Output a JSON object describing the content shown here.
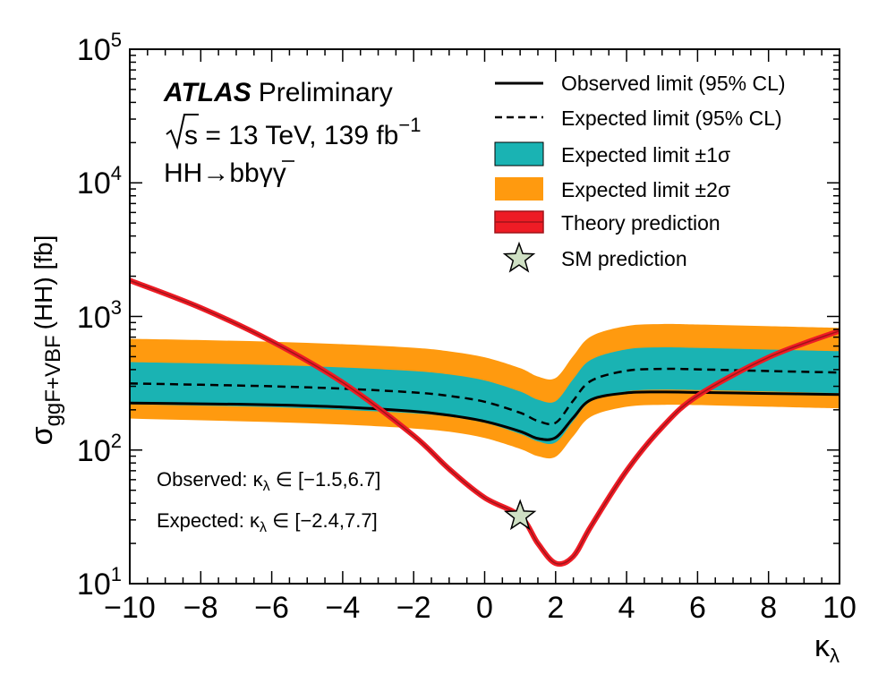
{
  "chart_data": {
    "type": "line",
    "title": "",
    "xlabel": "κ",
    "xlabel_sub": "λ",
    "ylabel": "σ",
    "ylabel_sub": "ggF+VBF",
    "ylabel_tail": "(HH) [fb]",
    "xlim": [
      -10,
      10
    ],
    "ylim": [
      10,
      100000
    ],
    "yscale": "log",
    "x_ticks": [
      "−10",
      "−8",
      "−6",
      "−4",
      "−2",
      "0",
      "2",
      "4",
      "6",
      "8",
      "10"
    ],
    "y_ticks": [
      {
        "base": "10",
        "exp": "1"
      },
      {
        "base": "10",
        "exp": "2"
      },
      {
        "base": "10",
        "exp": "3"
      },
      {
        "base": "10",
        "exp": "4"
      },
      {
        "base": "10",
        "exp": "5"
      }
    ],
    "x": [
      -10,
      -8,
      -6,
      -4,
      -2,
      -1,
      0,
      1,
      1.5,
      2,
      2.5,
      3,
      4,
      5,
      6,
      8,
      10
    ],
    "series": [
      {
        "name": "Observed limit (95% CL)",
        "values": [
          225,
          222,
          218,
          210,
          195,
          182,
          164,
          138,
          122,
          124,
          175,
          238,
          268,
          272,
          270,
          265,
          260
        ]
      },
      {
        "name": "Expected limit (95% CL)",
        "values": [
          315,
          308,
          300,
          288,
          270,
          254,
          230,
          190,
          165,
          160,
          235,
          330,
          392,
          405,
          402,
          390,
          380
        ]
      },
      {
        "name": "Expected limit ±1σ",
        "lower": [
          220,
          215,
          210,
          200,
          188,
          178,
          160,
          132,
          116,
          114,
          165,
          232,
          274,
          283,
          281,
          274,
          266
        ],
        "upper": [
          455,
          445,
          433,
          415,
          390,
          368,
          332,
          274,
          238,
          232,
          340,
          475,
          568,
          587,
          582,
          565,
          550
        ]
      },
      {
        "name": "Expected limit ±2σ",
        "lower": [
          172,
          167,
          162,
          155,
          145,
          137,
          123,
          102,
          90,
          89,
          127,
          178,
          211,
          218,
          217,
          211,
          205
        ],
        "upper": [
          680,
          665,
          647,
          620,
          583,
          548,
          495,
          410,
          355,
          346,
          507,
          710,
          848,
          877,
          870,
          845,
          822
        ]
      },
      {
        "name": "Theory prediction",
        "values": [
          1860,
          1160,
          650,
          320,
          128,
          72,
          44,
          32,
          20,
          14.2,
          16,
          27,
          70,
          148,
          255,
          494,
          780
        ]
      }
    ],
    "sm_prediction": {
      "name": "SM prediction",
      "x": 1.0,
      "y": 32
    },
    "legend": [
      "Observed limit (95% CL)",
      "Expected limit (95% CL)",
      "Expected limit ±1σ",
      "Expected limit ±2σ",
      "Theory prediction",
      "SM prediction"
    ],
    "legend_position": "top-right",
    "colors": {
      "observed": "#000000",
      "expected": "#000000",
      "band1": "#1ab3b3",
      "band2": "#ff9a0f",
      "theory_fill": "#ee1c25",
      "theory_line": "#a0131a",
      "star": "#cfe0c4"
    }
  },
  "annotations": {
    "experiment": "ATLAS",
    "status": "Preliminary",
    "energy_prefix": "s",
    "energy_text": " = 13 TeV, 139 fb",
    "energy_exp": "−1",
    "channel_part1": "HH→b",
    "channel_bbar": "b",
    "channel_part2": "γγ",
    "observed_label": "Observed: κ",
    "observed_sub": "λ",
    "observed_range": " ∈ [−1.5,6.7]",
    "expected_label": "Expected: κ",
    "expected_sub": "λ",
    "expected_range": " ∈ [−2.4,7.7]"
  }
}
